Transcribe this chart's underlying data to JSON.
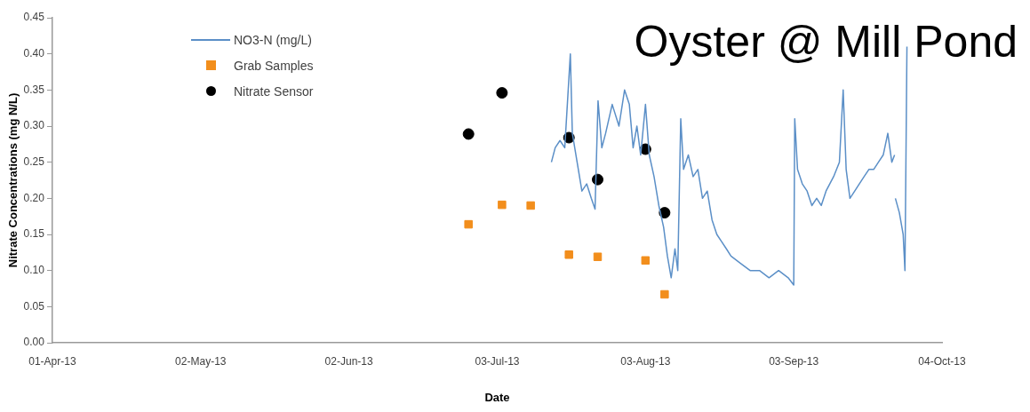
{
  "chart_data": {
    "type": "scatter",
    "title": "Oyster @ Mill Pond",
    "xlabel": "Date",
    "ylabel": "Nitrate Concentrations (mg N/L)",
    "xlim": [
      "2013-04-01",
      "2013-10-04"
    ],
    "xticks": [
      {
        "value": "2013-04-01",
        "label": "01-Apr-13"
      },
      {
        "value": "2013-05-02",
        "label": "02-May-13"
      },
      {
        "value": "2013-06-02",
        "label": "02-Jun-13"
      },
      {
        "value": "2013-07-03",
        "label": "03-Jul-13"
      },
      {
        "value": "2013-08-03",
        "label": "03-Aug-13"
      },
      {
        "value": "2013-09-03",
        "label": "03-Sep-13"
      },
      {
        "value": "2013-10-04",
        "label": "04-Oct-13"
      }
    ],
    "ylim": [
      0,
      0.45
    ],
    "yticks": [
      {
        "value": 0,
        "label": "0.00"
      },
      {
        "value": 0.05,
        "label": "0.05"
      },
      {
        "value": 0.1,
        "label": "0.10"
      },
      {
        "value": 0.15,
        "label": "0.15"
      },
      {
        "value": 0.2,
        "label": "0.20"
      },
      {
        "value": 0.25,
        "label": "0.25"
      },
      {
        "value": 0.3,
        "label": "0.30"
      },
      {
        "value": 0.35,
        "label": "0.35"
      },
      {
        "value": 0.4,
        "label": "0.40"
      },
      {
        "value": 0.45,
        "label": "0.45"
      }
    ],
    "grid": false,
    "legend": "top left",
    "series": [
      {
        "name": "NO3-N (mg/L)",
        "type": "line",
        "color": "#5b8fc7",
        "marker": "none",
        "x": [
          "2013-07-14T08:00",
          "2013-07-15T03:00",
          "2013-07-16T03:00",
          "2013-07-17T03:00",
          "2013-07-18T07:00",
          "2013-07-18T17:00",
          "2013-07-19T17:00",
          "2013-07-20T17:00",
          "2013-07-21T17:00",
          "2013-07-22T16:00",
          "2013-07-23T11:00",
          "2013-07-24T02:00",
          "2013-07-24T21:00",
          "2013-07-25T16:00",
          "2013-07-27T01:00",
          "2013-07-28T11:00",
          "2013-07-29T15:00",
          "2013-07-30T15:00",
          "2013-07-31T10:00",
          "2013-08-01T05:00",
          "2013-08-02T00:00",
          "2013-08-03T00:00",
          "2013-08-03T19:00",
          "2013-08-04T19:00",
          "2013-08-05T19:00",
          "2013-08-06T19:00",
          "2013-08-07T14:00",
          "2013-08-08T09:00",
          "2013-08-09T04:00",
          "2013-08-09T18:00",
          "2013-08-10T09:00",
          "2013-08-10T23:00",
          "2013-08-11T23:00",
          "2013-08-12T23:00",
          "2013-08-13T23:00",
          "2013-08-14T22:00",
          "2013-08-15T22:00",
          "2013-08-16T22:00",
          "2013-08-17T22:00",
          "2013-08-18T22:00",
          "2013-08-19T22:00",
          "2013-08-20T21:00",
          "2013-08-22T21:00",
          "2013-08-24T21:00",
          "2013-08-26T20:00",
          "2013-08-28T20:00",
          "2013-08-30T20:00",
          "2013-09-01T20:00",
          "2013-09-03T00:00",
          "2013-09-03T05:00",
          "2013-09-03T19:00",
          "2013-09-04T19:00",
          "2013-09-05T19:00",
          "2013-09-06T19:00",
          "2013-09-07T19:00",
          "2013-09-08T18:00",
          "2013-09-09T18:00",
          "2013-09-11T08:00",
          "2013-09-12T13:00",
          "2013-09-13T08:00",
          "2013-09-13T23:00",
          "2013-09-14T18:00",
          "2013-09-15T18:00",
          "2013-09-16T17:00",
          "2013-09-17T17:00",
          "2013-09-18T17:00",
          "2013-09-19T17:00",
          "2013-09-20T17:00",
          "2013-09-21T17:00",
          "2013-09-22T16:00",
          "2013-09-23T12:00",
          "2013-09-24T02:00",
          "2013-09-24T04:00",
          "2013-09-24T06:00",
          "2013-09-25T02:00",
          "2013-09-25T21:00",
          "2013-09-26T06:00",
          "2013-09-26T16:00"
        ],
        "values": [
          0.25,
          0.27,
          0.28,
          0.27,
          0.4,
          0.29,
          0.25,
          0.21,
          0.22,
          0.2,
          0.185,
          0.335,
          0.27,
          0.29,
          0.33,
          0.3,
          0.35,
          0.33,
          0.27,
          0.3,
          0.26,
          0.33,
          0.26,
          0.23,
          0.19,
          0.16,
          0.12,
          0.09,
          0.13,
          0.1,
          0.31,
          0.24,
          0.26,
          0.23,
          0.24,
          0.2,
          0.21,
          0.17,
          0.15,
          0.14,
          0.13,
          0.12,
          0.11,
          0.1,
          0.1,
          0.09,
          0.1,
          0.09,
          0.08,
          0.31,
          0.24,
          0.22,
          0.21,
          0.19,
          0.2,
          0.19,
          0.21,
          0.23,
          0.25,
          0.35,
          0.24,
          0.2,
          0.21,
          0.22,
          0.23,
          0.24,
          0.24,
          0.25,
          0.26,
          0.29,
          0.25,
          0.26,
          null,
          0.2,
          0.18,
          0.15,
          0.1,
          0.41
        ]
      },
      {
        "name": "Grab Samples",
        "type": "scatter",
        "color": "#f28e1c",
        "marker": "square",
        "x": [
          "2013-06-27",
          "2013-07-04",
          "2013-07-10",
          "2013-07-18",
          "2013-07-24",
          "2013-08-03",
          "2013-08-07"
        ],
        "values": [
          0.164,
          0.191,
          0.19,
          0.122,
          0.119,
          0.114,
          0.067
        ]
      },
      {
        "name": "Nitrate Sensor",
        "type": "scatter",
        "color": "#000000",
        "marker": "circle",
        "x": [
          "2013-06-27",
          "2013-07-04",
          "2013-07-18",
          "2013-07-24",
          "2013-08-03",
          "2013-08-07"
        ],
        "values": [
          0.289,
          0.346,
          0.284,
          0.226,
          0.268,
          0.18
        ]
      }
    ]
  }
}
